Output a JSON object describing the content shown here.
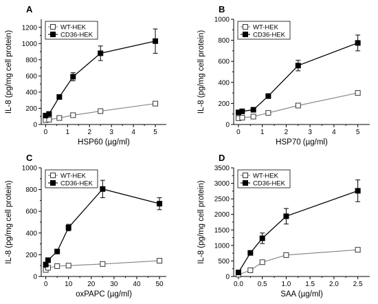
{
  "chart_data": [
    {
      "type": "line",
      "panel_label": "A",
      "xlabel": "HSP60 (µg/ml)",
      "ylabel": "IL-8 (pg/mg cell protein)",
      "xlim": [
        -0.2,
        5.5
      ],
      "ylim": [
        0,
        1300
      ],
      "xticks": [
        0,
        1,
        2,
        3,
        4,
        5
      ],
      "yticks": [
        0,
        200,
        400,
        600,
        800,
        1000,
        1200
      ],
      "legend_position": "top-left",
      "series": [
        {
          "name": "WT-HEK",
          "marker": "open-square",
          "color": "#808080",
          "x": [
            0,
            0.156,
            0.625,
            1.25,
            2.5,
            5
          ],
          "y": [
            55,
            60,
            80,
            115,
            165,
            258
          ],
          "err": [
            8,
            8,
            10,
            12,
            12,
            12
          ]
        },
        {
          "name": "CD36-HEK",
          "marker": "filled-square",
          "color": "#000000",
          "x": [
            0,
            0.156,
            0.625,
            1.25,
            2.5,
            5
          ],
          "y": [
            110,
            130,
            340,
            590,
            880,
            1030
          ],
          "err": [
            15,
            15,
            25,
            50,
            90,
            150
          ]
        }
      ]
    },
    {
      "type": "line",
      "panel_label": "B",
      "xlabel": "HSP70 (µg/ml)",
      "ylabel": "IL-8 (pg/mg cell protein)",
      "xlim": [
        -0.2,
        5.5
      ],
      "ylim": [
        0,
        1000
      ],
      "xticks": [
        0,
        1,
        2,
        3,
        4,
        5
      ],
      "yticks": [
        0,
        200,
        400,
        600,
        800,
        1000
      ],
      "legend_position": "top-left",
      "series": [
        {
          "name": "WT-HEK",
          "marker": "open-square",
          "color": "#808080",
          "x": [
            0,
            0.156,
            0.625,
            1.25,
            2.5,
            5
          ],
          "y": [
            60,
            65,
            75,
            110,
            180,
            300
          ],
          "err": [
            8,
            8,
            10,
            10,
            12,
            12
          ]
        },
        {
          "name": "CD36-HEK",
          "marker": "filled-square",
          "color": "#000000",
          "x": [
            0,
            0.156,
            0.625,
            1.25,
            2.5,
            5
          ],
          "y": [
            115,
            125,
            140,
            270,
            560,
            775
          ],
          "err": [
            12,
            12,
            15,
            20,
            50,
            75
          ]
        }
      ]
    },
    {
      "type": "line",
      "panel_label": "C",
      "xlabel": "oxPAPC (µg/ml)",
      "ylabel": "IL-8 (pg/mg cell protein)",
      "xlim": [
        -2,
        53
      ],
      "ylim": [
        0,
        1000
      ],
      "xticks": [
        0,
        10,
        20,
        30,
        40,
        50
      ],
      "yticks": [
        0,
        200,
        400,
        600,
        800,
        1000
      ],
      "legend_position": "top-left",
      "series": [
        {
          "name": "WT-HEK",
          "marker": "open-square",
          "color": "#808080",
          "x": [
            0,
            1,
            5,
            10,
            25,
            50
          ],
          "y": [
            60,
            80,
            95,
            100,
            115,
            145
          ],
          "err": [
            8,
            8,
            10,
            10,
            12,
            15
          ]
        },
        {
          "name": "CD36-HEK",
          "marker": "filled-square",
          "color": "#000000",
          "x": [
            0,
            1,
            5,
            10,
            25,
            50
          ],
          "y": [
            110,
            150,
            230,
            450,
            805,
            670
          ],
          "err": [
            15,
            15,
            15,
            30,
            80,
            55
          ]
        }
      ]
    },
    {
      "type": "line",
      "panel_label": "D",
      "xlabel": "SAA (µg/ml)",
      "ylabel": "IL-8 (pg/mg cell protein)",
      "xlim": [
        -0.1,
        2.75
      ],
      "ylim": [
        0,
        3500
      ],
      "xticks": [
        0.0,
        0.5,
        1.0,
        1.5,
        2.0,
        2.5
      ],
      "xtick_labels": [
        "0.0",
        "0.5",
        "1.0",
        "1.5",
        "2.0",
        "2.5"
      ],
      "yticks": [
        0,
        500,
        1000,
        1500,
        2000,
        2500,
        3000,
        3500
      ],
      "legend_position": "top-left",
      "series": [
        {
          "name": "WT-HEK",
          "marker": "open-square",
          "color": "#808080",
          "x": [
            0,
            0.25,
            0.5,
            1,
            2.5
          ],
          "y": [
            60,
            200,
            460,
            690,
            860
          ],
          "err": [
            20,
            20,
            30,
            30,
            40
          ]
        },
        {
          "name": "CD36-HEK",
          "marker": "filled-square",
          "color": "#000000",
          "x": [
            0,
            0.25,
            0.5,
            1,
            2.5
          ],
          "y": [
            130,
            760,
            1230,
            1940,
            2760
          ],
          "err": [
            30,
            60,
            170,
            250,
            350
          ]
        }
      ]
    }
  ]
}
